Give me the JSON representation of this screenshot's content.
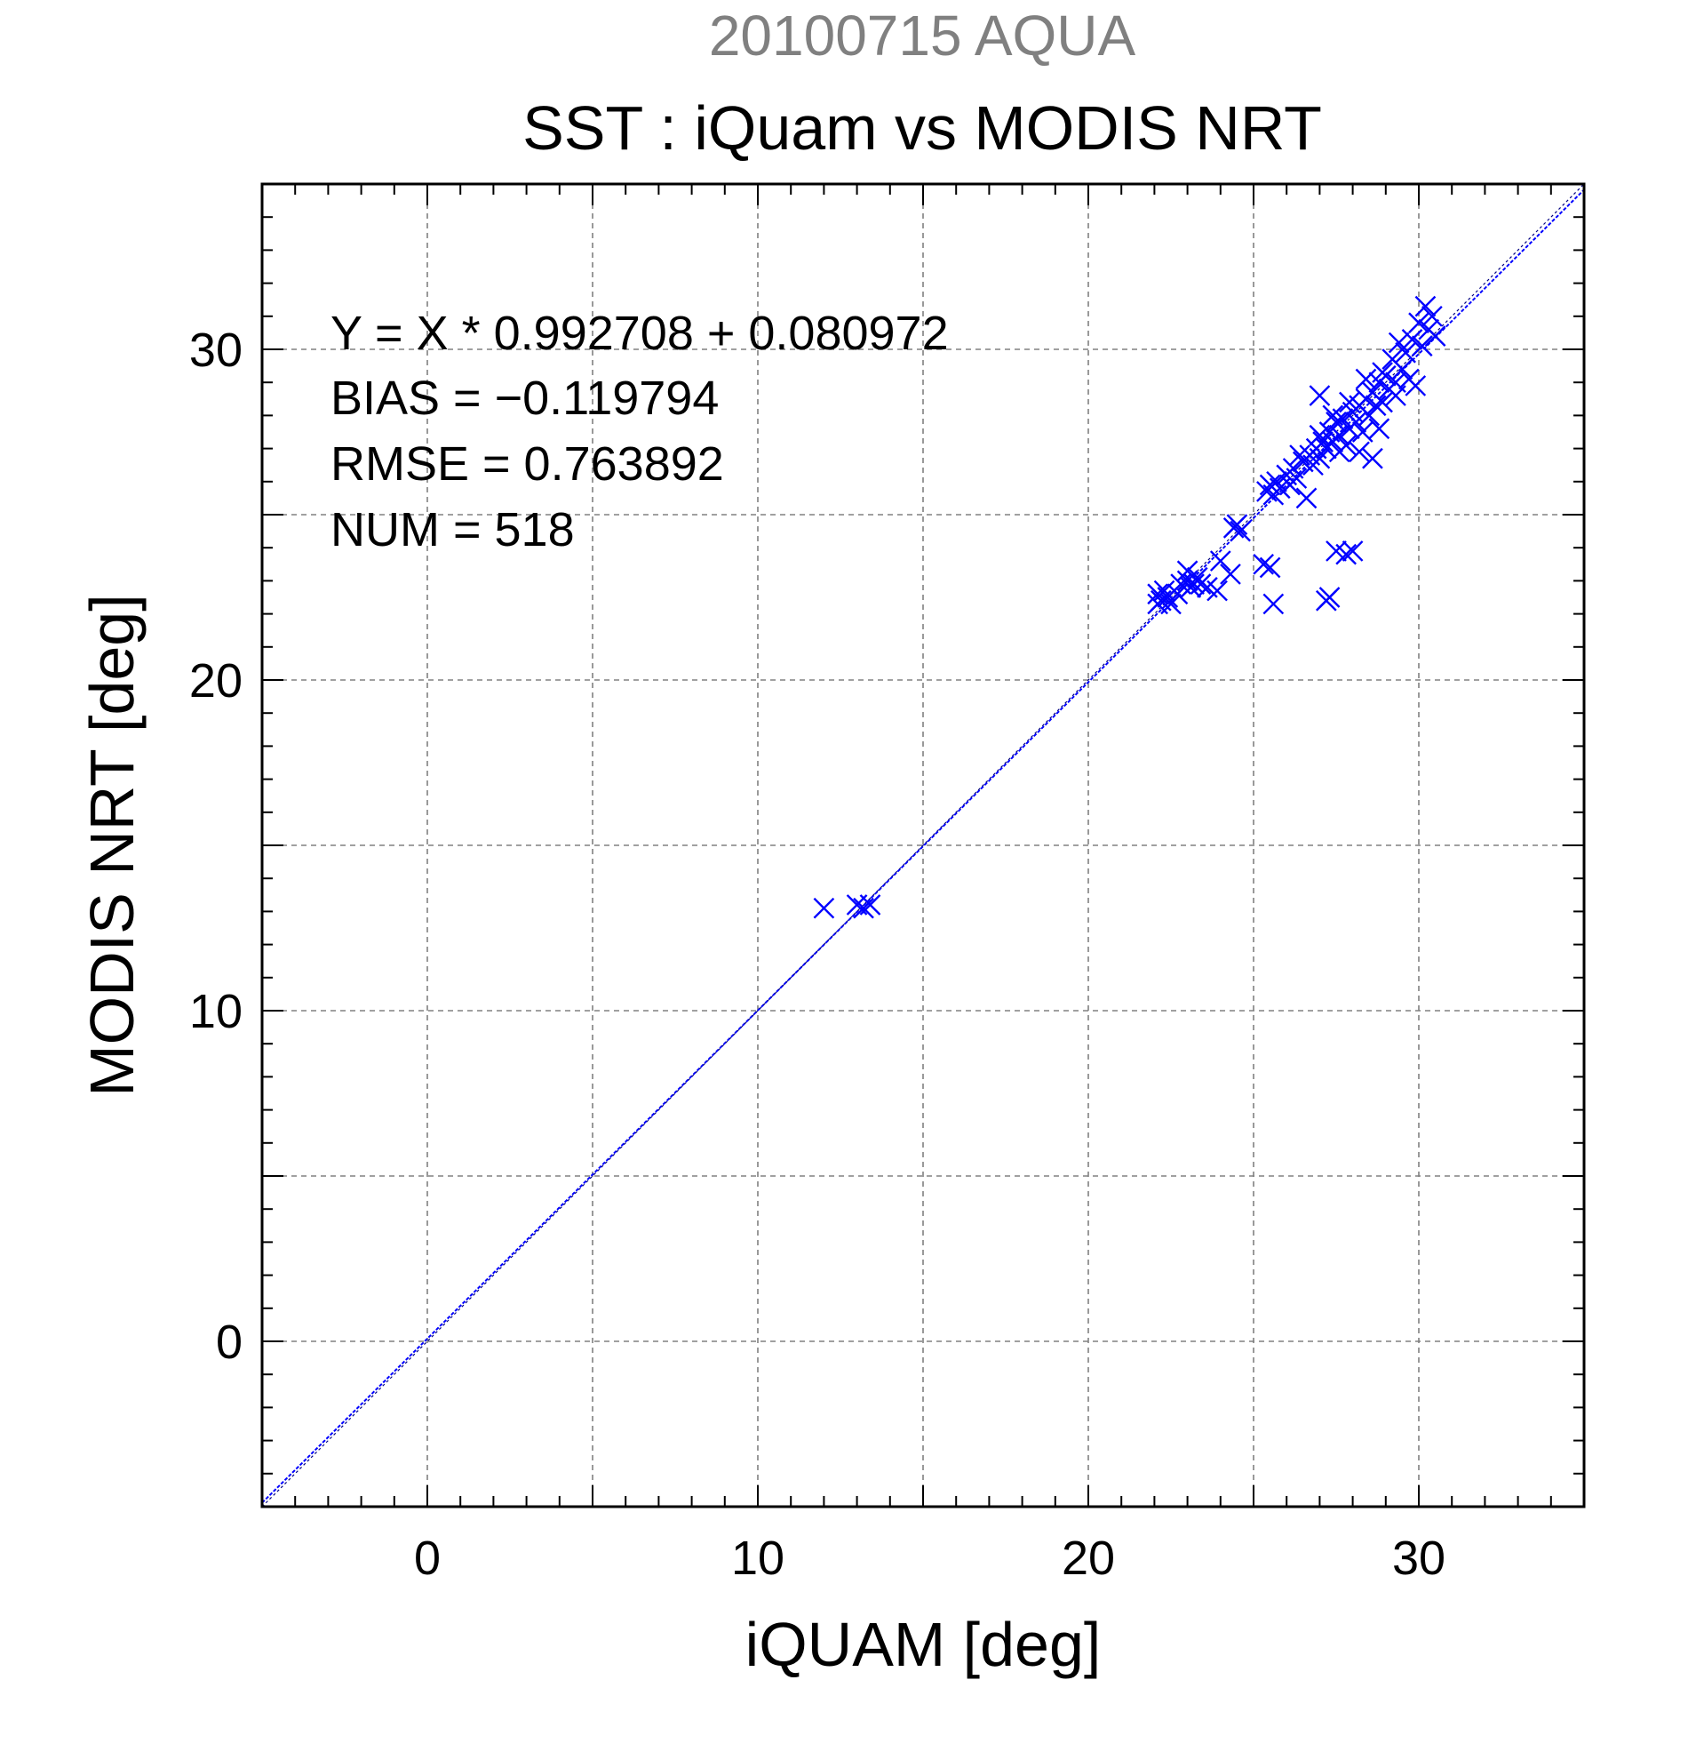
{
  "chart_data": {
    "type": "scatter",
    "title": "SST : iQuam vs MODIS NRT",
    "subtitle": "20100715 AQUA",
    "xlabel": "iQUAM [deg]",
    "ylabel": "MODIS NRT [deg]",
    "xlim": [
      -5,
      35
    ],
    "ylim": [
      -5,
      35
    ],
    "xticks": [
      0,
      10,
      20,
      30
    ],
    "yticks": [
      0,
      10,
      20,
      30
    ],
    "xtick_labels": [
      "0",
      "10",
      "20",
      "30"
    ],
    "ytick_labels": [
      "0",
      "10",
      "20",
      "30"
    ],
    "grid": true,
    "grid_step": 5,
    "stats": [
      "Y = X * 0.992708 + 0.080972",
      "BIAS = −0.119794",
      "RMSE = 0.763892",
      "NUM = 518"
    ],
    "regression": {
      "slope": 0.992708,
      "intercept": 0.080972
    },
    "marker": "x",
    "colors": {
      "points": "#0000ff",
      "subtitle": "#808080",
      "grid": "#808080",
      "axes": "#000000"
    },
    "points": [
      [
        12.0,
        13.1
      ],
      [
        13.0,
        13.2
      ],
      [
        13.2,
        13.1
      ],
      [
        13.4,
        13.2
      ],
      [
        22.1,
        22.3
      ],
      [
        22.1,
        22.6
      ],
      [
        22.2,
        22.4
      ],
      [
        22.3,
        22.7
      ],
      [
        22.4,
        22.5
      ],
      [
        22.5,
        22.3
      ],
      [
        22.7,
        22.6
      ],
      [
        22.8,
        22.9
      ],
      [
        23.0,
        23.3
      ],
      [
        23.0,
        23.0
      ],
      [
        23.1,
        22.8
      ],
      [
        23.2,
        22.9
      ],
      [
        23.3,
        23.1
      ],
      [
        23.4,
        22.9
      ],
      [
        23.6,
        22.8
      ],
      [
        23.9,
        22.7
      ],
      [
        24.0,
        23.6
      ],
      [
        24.3,
        23.2
      ],
      [
        24.4,
        24.6
      ],
      [
        24.5,
        24.7
      ],
      [
        24.6,
        24.5
      ],
      [
        25.3,
        23.5
      ],
      [
        25.5,
        23.4
      ],
      [
        25.6,
        22.3
      ],
      [
        25.4,
        25.7
      ],
      [
        25.5,
        25.9
      ],
      [
        25.6,
        25.6
      ],
      [
        25.7,
        26.0
      ],
      [
        25.8,
        25.8
      ],
      [
        26.0,
        26.2
      ],
      [
        26.1,
        25.9
      ],
      [
        26.2,
        26.4
      ],
      [
        26.3,
        26.1
      ],
      [
        26.5,
        26.6
      ],
      [
        26.6,
        25.5
      ],
      [
        26.7,
        26.8
      ],
      [
        26.8,
        26.5
      ],
      [
        26.9,
        27.0
      ],
      [
        27.0,
        28.6
      ],
      [
        27.0,
        26.7
      ],
      [
        27.1,
        27.2
      ],
      [
        27.2,
        22.4
      ],
      [
        27.3,
        22.5
      ],
      [
        27.2,
        27.0
      ],
      [
        27.3,
        27.5
      ],
      [
        27.4,
        27.2
      ],
      [
        27.5,
        23.9
      ],
      [
        27.5,
        27.8
      ],
      [
        27.6,
        27.4
      ],
      [
        27.7,
        27.9
      ],
      [
        27.8,
        23.8
      ],
      [
        27.8,
        27.1
      ],
      [
        27.9,
        27.6
      ],
      [
        28.0,
        23.9
      ],
      [
        28.0,
        28.1
      ],
      [
        28.1,
        27.8
      ],
      [
        28.2,
        28.3
      ],
      [
        28.3,
        27.5
      ],
      [
        28.4,
        28.5
      ],
      [
        28.5,
        28.0
      ],
      [
        28.6,
        26.7
      ],
      [
        28.6,
        28.7
      ],
      [
        28.7,
        28.3
      ],
      [
        28.8,
        29.0
      ],
      [
        28.9,
        28.4
      ],
      [
        29.0,
        29.2
      ],
      [
        29.1,
        28.8
      ],
      [
        29.2,
        29.7
      ],
      [
        29.3,
        29.0
      ],
      [
        29.4,
        30.2
      ],
      [
        29.5,
        29.4
      ],
      [
        29.6,
        29.9
      ],
      [
        29.7,
        29.1
      ],
      [
        29.8,
        30.3
      ],
      [
        29.9,
        28.9
      ],
      [
        30.0,
        30.8
      ],
      [
        30.1,
        30.1
      ],
      [
        30.2,
        31.3
      ],
      [
        30.3,
        30.6
      ],
      [
        30.4,
        31.0
      ],
      [
        30.5,
        30.4
      ],
      [
        27.6,
        26.9
      ],
      [
        28.2,
        26.9
      ],
      [
        28.8,
        27.6
      ],
      [
        27.0,
        27.4
      ],
      [
        27.4,
        28.0
      ],
      [
        28.4,
        29.1
      ],
      [
        28.9,
        29.3
      ],
      [
        29.3,
        28.6
      ],
      [
        26.4,
        26.8
      ],
      [
        27.9,
        28.4
      ]
    ]
  }
}
